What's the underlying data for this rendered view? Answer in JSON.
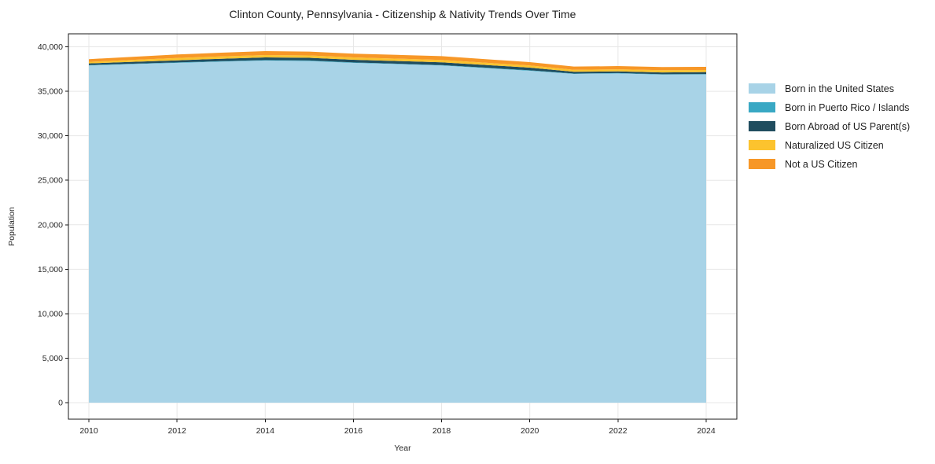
{
  "chart_data": {
    "type": "area",
    "stacked": true,
    "title": "Clinton County, Pennsylvania - Citizenship & Nativity Trends Over Time",
    "xlabel": "Year",
    "ylabel": "Population",
    "x": [
      2010,
      2011,
      2012,
      2013,
      2014,
      2015,
      2016,
      2017,
      2018,
      2019,
      2020,
      2021,
      2022,
      2023,
      2024
    ],
    "series": [
      {
        "name": "Born in the United States",
        "color": "#a8d3e7",
        "values": [
          37900,
          38050,
          38190,
          38330,
          38450,
          38400,
          38190,
          38050,
          37900,
          37600,
          37300,
          36950,
          37010,
          36870,
          36890
        ]
      },
      {
        "name": "Born in Puerto Rico / Islands",
        "color": "#39a8c4",
        "values": [
          50,
          50,
          50,
          55,
          60,
          60,
          55,
          50,
          50,
          55,
          55,
          40,
          40,
          45,
          50
        ]
      },
      {
        "name": "Born Abroad of US Parent(s)",
        "color": "#204d5f",
        "values": [
          180,
          210,
          240,
          270,
          300,
          300,
          300,
          300,
          300,
          300,
          300,
          200,
          190,
          200,
          215
        ]
      },
      {
        "name": "Naturalized US Citizen",
        "color": "#fcc32e",
        "values": [
          180,
          220,
          265,
          265,
          265,
          265,
          265,
          265,
          265,
          250,
          240,
          230,
          230,
          260,
          240
        ]
      },
      {
        "name": "Not a US Citizen",
        "color": "#f79727",
        "values": [
          300,
          345,
          390,
          415,
          440,
          430,
          415,
          425,
          440,
          400,
          380,
          355,
          360,
          350,
          355
        ]
      }
    ],
    "x_ticks": [
      2010,
      2012,
      2014,
      2016,
      2018,
      2020,
      2022,
      2024
    ],
    "y_ticks": [
      0,
      5000,
      10000,
      15000,
      20000,
      25000,
      30000,
      35000,
      40000
    ],
    "xlim": [
      2009.5,
      2024.7
    ],
    "ylim": [
      0,
      40000
    ],
    "grid": true,
    "legend_position": "right-outside",
    "colors": {
      "background": "#ffffff",
      "grid": "#e7e7e7",
      "axis": "#1a1a1a",
      "text": "#262626"
    }
  }
}
